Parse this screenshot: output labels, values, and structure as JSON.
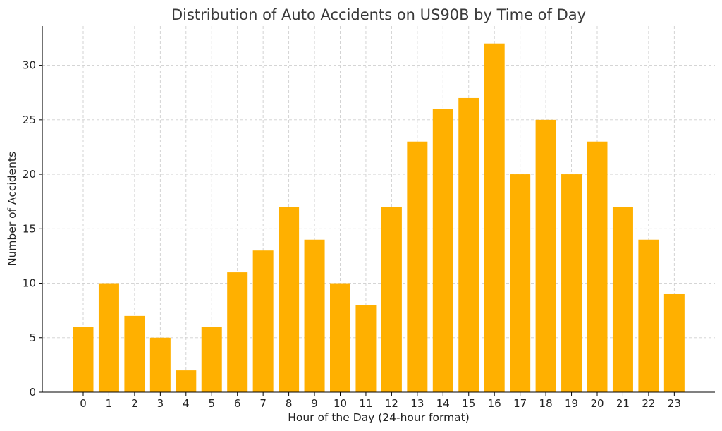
{
  "chart_data": {
    "type": "bar",
    "title": "Distribution of Auto Accidents on US90B by Time of Day",
    "xlabel": "Hour of the Day (24-hour format)",
    "ylabel": "Number of Accidents",
    "categories": [
      "0",
      "1",
      "2",
      "3",
      "4",
      "5",
      "6",
      "7",
      "8",
      "9",
      "10",
      "11",
      "12",
      "13",
      "14",
      "15",
      "16",
      "17",
      "18",
      "19",
      "20",
      "21",
      "22",
      "23"
    ],
    "values": [
      6,
      10,
      7,
      5,
      2,
      6,
      11,
      13,
      17,
      14,
      10,
      8,
      17,
      23,
      26,
      27,
      32,
      20,
      25,
      20,
      23,
      17,
      14,
      9
    ],
    "ylim": [
      0,
      33.6
    ],
    "yticks": [
      0,
      5,
      10,
      15,
      20,
      25,
      30
    ],
    "grid": true,
    "bar_color": "#ffb000"
  }
}
